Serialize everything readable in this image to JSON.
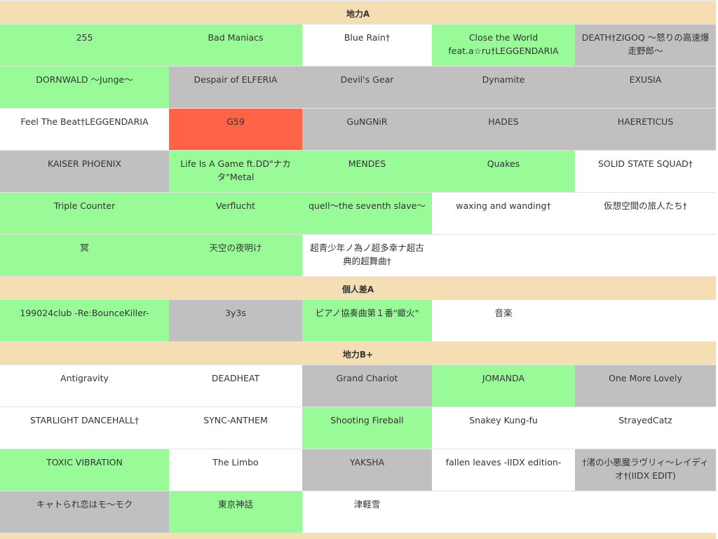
{
  "sections": [
    {
      "title": "地力A",
      "rows": [
        [
          {
            "text": "255",
            "color": "#98fb98"
          },
          {
            "text": "Bad Maniacs",
            "color": "#98fb98"
          },
          {
            "text": "Blue Rain†",
            "color": "#ffffff"
          },
          {
            "text": "Close the World feat.a☆ru†LEGGENDARIA",
            "color": "#98fb98"
          },
          {
            "text": "DEATH†ZIGOQ ～怒りの高速爆走野郎～",
            "color": "#c0c0c0"
          }
        ],
        [
          {
            "text": "DORNWALD ～Junge～",
            "color": "#98fb98"
          },
          {
            "text": "Despair of ELFERIA",
            "color": "#c0c0c0"
          },
          {
            "text": "Devil's Gear",
            "color": "#c0c0c0"
          },
          {
            "text": "Dynamite",
            "color": "#c0c0c0"
          },
          {
            "text": "EXUSIA",
            "color": "#c0c0c0"
          }
        ],
        [
          {
            "text": "Feel The Beat†LEGGENDARIA",
            "color": "#ffffff"
          },
          {
            "text": "G59",
            "color": "#ff6347"
          },
          {
            "text": "GuNGNiR",
            "color": "#c0c0c0"
          },
          {
            "text": "HADES",
            "color": "#c0c0c0"
          },
          {
            "text": "HAERETICUS",
            "color": "#c0c0c0"
          }
        ],
        [
          {
            "text": "KAISER PHOENIX",
            "color": "#c0c0c0"
          },
          {
            "text": "Life Is A Game ft.DD\"ナカタ\"Metal",
            "color": "#98fb98"
          },
          {
            "text": "MENDES",
            "color": "#98fb98"
          },
          {
            "text": "Quakes",
            "color": "#98fb98"
          },
          {
            "text": "SOLID STATE SQUAD†",
            "color": "#ffffff"
          }
        ],
        [
          {
            "text": "Triple Counter",
            "color": "#98fb98"
          },
          {
            "text": "Verflucht",
            "color": "#98fb98"
          },
          {
            "text": "quell～the seventh slave～",
            "color": "#98fb98"
          },
          {
            "text": "waxing and wanding†",
            "color": "#ffffff"
          },
          {
            "text": "仮想空間の旅人たち†",
            "color": "#ffffff"
          }
        ],
        [
          {
            "text": "冥",
            "color": "#98fb98"
          },
          {
            "text": "天空の夜明け",
            "color": "#98fb98"
          },
          {
            "text": "超青少年ノ為ノ超多幸ナ超古典的超舞曲†",
            "color": "#ffffff"
          }
        ]
      ]
    },
    {
      "title": "個人差A",
      "rows": [
        [
          {
            "text": "199024club -Re:BounceKiller-",
            "color": "#98fb98"
          },
          {
            "text": "3y3s",
            "color": "#c0c0c0"
          },
          {
            "text": "ピアノ協奏曲第１番\"蠍火\"",
            "color": "#98fb98"
          },
          {
            "text": "音楽",
            "color": "#ffffff"
          }
        ]
      ]
    },
    {
      "title": "地力B+",
      "rows": [
        [
          {
            "text": "Antigravity",
            "color": "#ffffff"
          },
          {
            "text": "DEADHEAT",
            "color": "#ffffff"
          },
          {
            "text": "Grand Chariot",
            "color": "#c0c0c0"
          },
          {
            "text": "JOMANDA",
            "color": "#98fb98"
          },
          {
            "text": "One More Lovely",
            "color": "#c0c0c0"
          }
        ],
        [
          {
            "text": "STARLIGHT DANCEHALL†",
            "color": "#ffffff"
          },
          {
            "text": "SYNC-ANTHEM",
            "color": "#ffffff"
          },
          {
            "text": "Shooting Fireball",
            "color": "#98fb98"
          },
          {
            "text": "Snakey Kung-fu",
            "color": "#ffffff"
          },
          {
            "text": "StrayedCatz",
            "color": "#ffffff"
          }
        ],
        [
          {
            "text": "TOXIC VIBRATION",
            "color": "#98fb98"
          },
          {
            "text": "The Limbo",
            "color": "#ffffff"
          },
          {
            "text": "YAKSHA",
            "color": "#c0c0c0"
          },
          {
            "text": "fallen leaves -IIDX edition-",
            "color": "#ffffff"
          },
          {
            "text": "†渚の小悪魔ラヴリィ～レイディオ†(IIDX EDIT)",
            "color": "#c0c0c0"
          }
        ],
        [
          {
            "text": "キャトられ恋はモ～モク",
            "color": "#c0c0c0"
          },
          {
            "text": "東京神話",
            "color": "#98fb98"
          },
          {
            "text": "津軽雪",
            "color": "#ffffff"
          }
        ]
      ]
    }
  ]
}
